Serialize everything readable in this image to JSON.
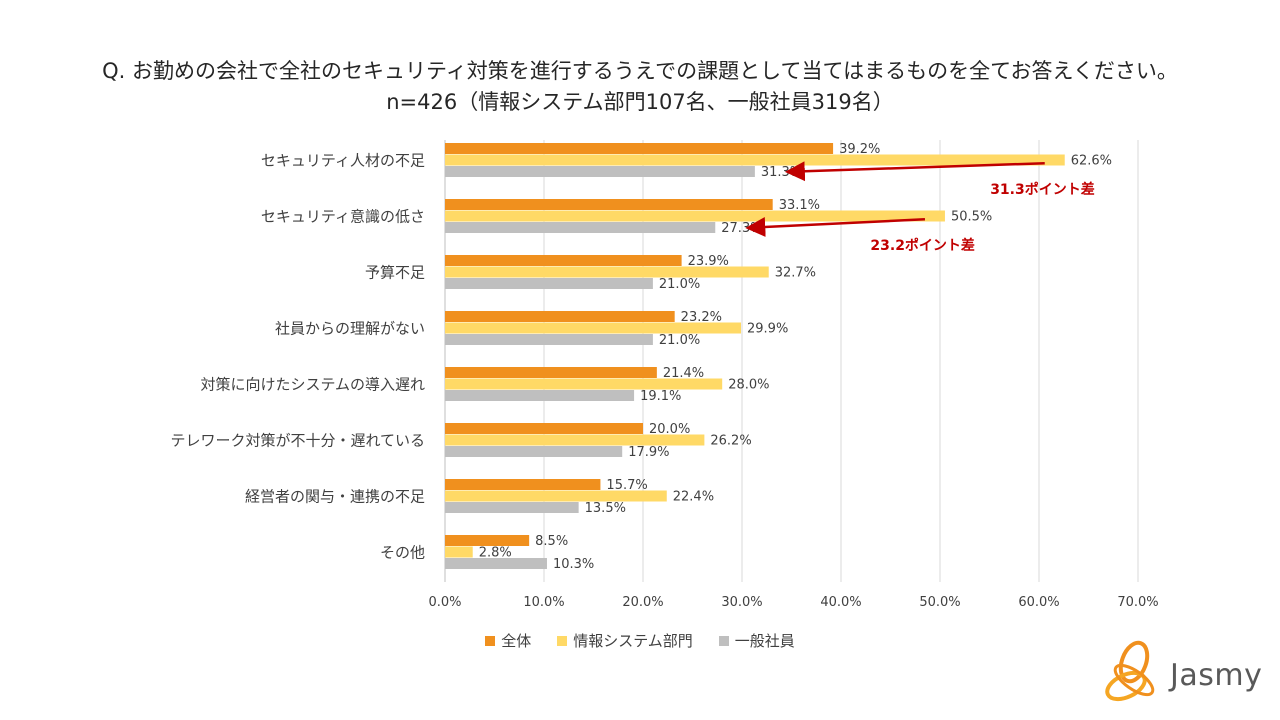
{
  "chart_data": {
    "type": "bar",
    "orientation": "horizontal",
    "title": "Q. お勤めの会社で全社のセキュリティ対策を進行するうえでの課題として当てはまるものを全てお答えください。",
    "subtitle": "n=426（情報システム部門107名、一般社員319名）",
    "categories": [
      "セキュリティ人材の不足",
      "セキュリティ意識の低さ",
      "予算不足",
      "社員からの理解がない",
      "対策に向けたシステムの導入遅れ",
      "テレワーク対策が不十分・遅れている",
      "経営者の関与・連携の不足",
      "その他"
    ],
    "series": [
      {
        "name": "全体",
        "color": "#f0901e",
        "values": [
          39.2,
          33.1,
          23.9,
          23.2,
          21.4,
          20.0,
          15.7,
          8.5
        ],
        "labels": [
          "39.2%",
          "33.1%",
          "23.9%",
          "23.2%",
          "21.4%",
          "20.0%",
          "15.7%",
          "8.5%"
        ]
      },
      {
        "name": "情報システム部門",
        "color": "#ffd966",
        "values": [
          62.6,
          50.5,
          32.7,
          29.9,
          28.0,
          26.2,
          22.4,
          2.8
        ],
        "labels": [
          "62.6%",
          "50.5%",
          "32.7%",
          "29.9%",
          "28.0%",
          "26.2%",
          "22.4%",
          "2.8%"
        ]
      },
      {
        "name": "一般社員",
        "color": "#bfbfbf",
        "values": [
          31.3,
          27.3,
          21.0,
          21.0,
          19.1,
          17.9,
          13.5,
          10.3
        ],
        "labels": [
          "31.3%",
          "27.3%",
          "21.0%",
          "21.0%",
          "19.1%",
          "17.9%",
          "13.5%",
          "10.3%"
        ]
      }
    ],
    "xlim": [
      0,
      70
    ],
    "xticks": [
      0,
      10,
      20,
      30,
      40,
      50,
      60,
      70
    ],
    "xtick_labels": [
      "0.0%",
      "10.0%",
      "20.0%",
      "30.0%",
      "40.0%",
      "50.0%",
      "60.0%",
      "70.0%"
    ],
    "grid": true,
    "legend_position": "bottom",
    "annotations": [
      {
        "text": "31.3ポイント差",
        "category_index": 0,
        "from_value": 62.6,
        "to_value": 31.3,
        "color": "#c00000"
      },
      {
        "text": "23.2ポイント差",
        "category_index": 1,
        "from_value": 50.5,
        "to_value": 27.3,
        "color": "#c00000"
      }
    ]
  },
  "logo": {
    "text": "Jasmy"
  }
}
